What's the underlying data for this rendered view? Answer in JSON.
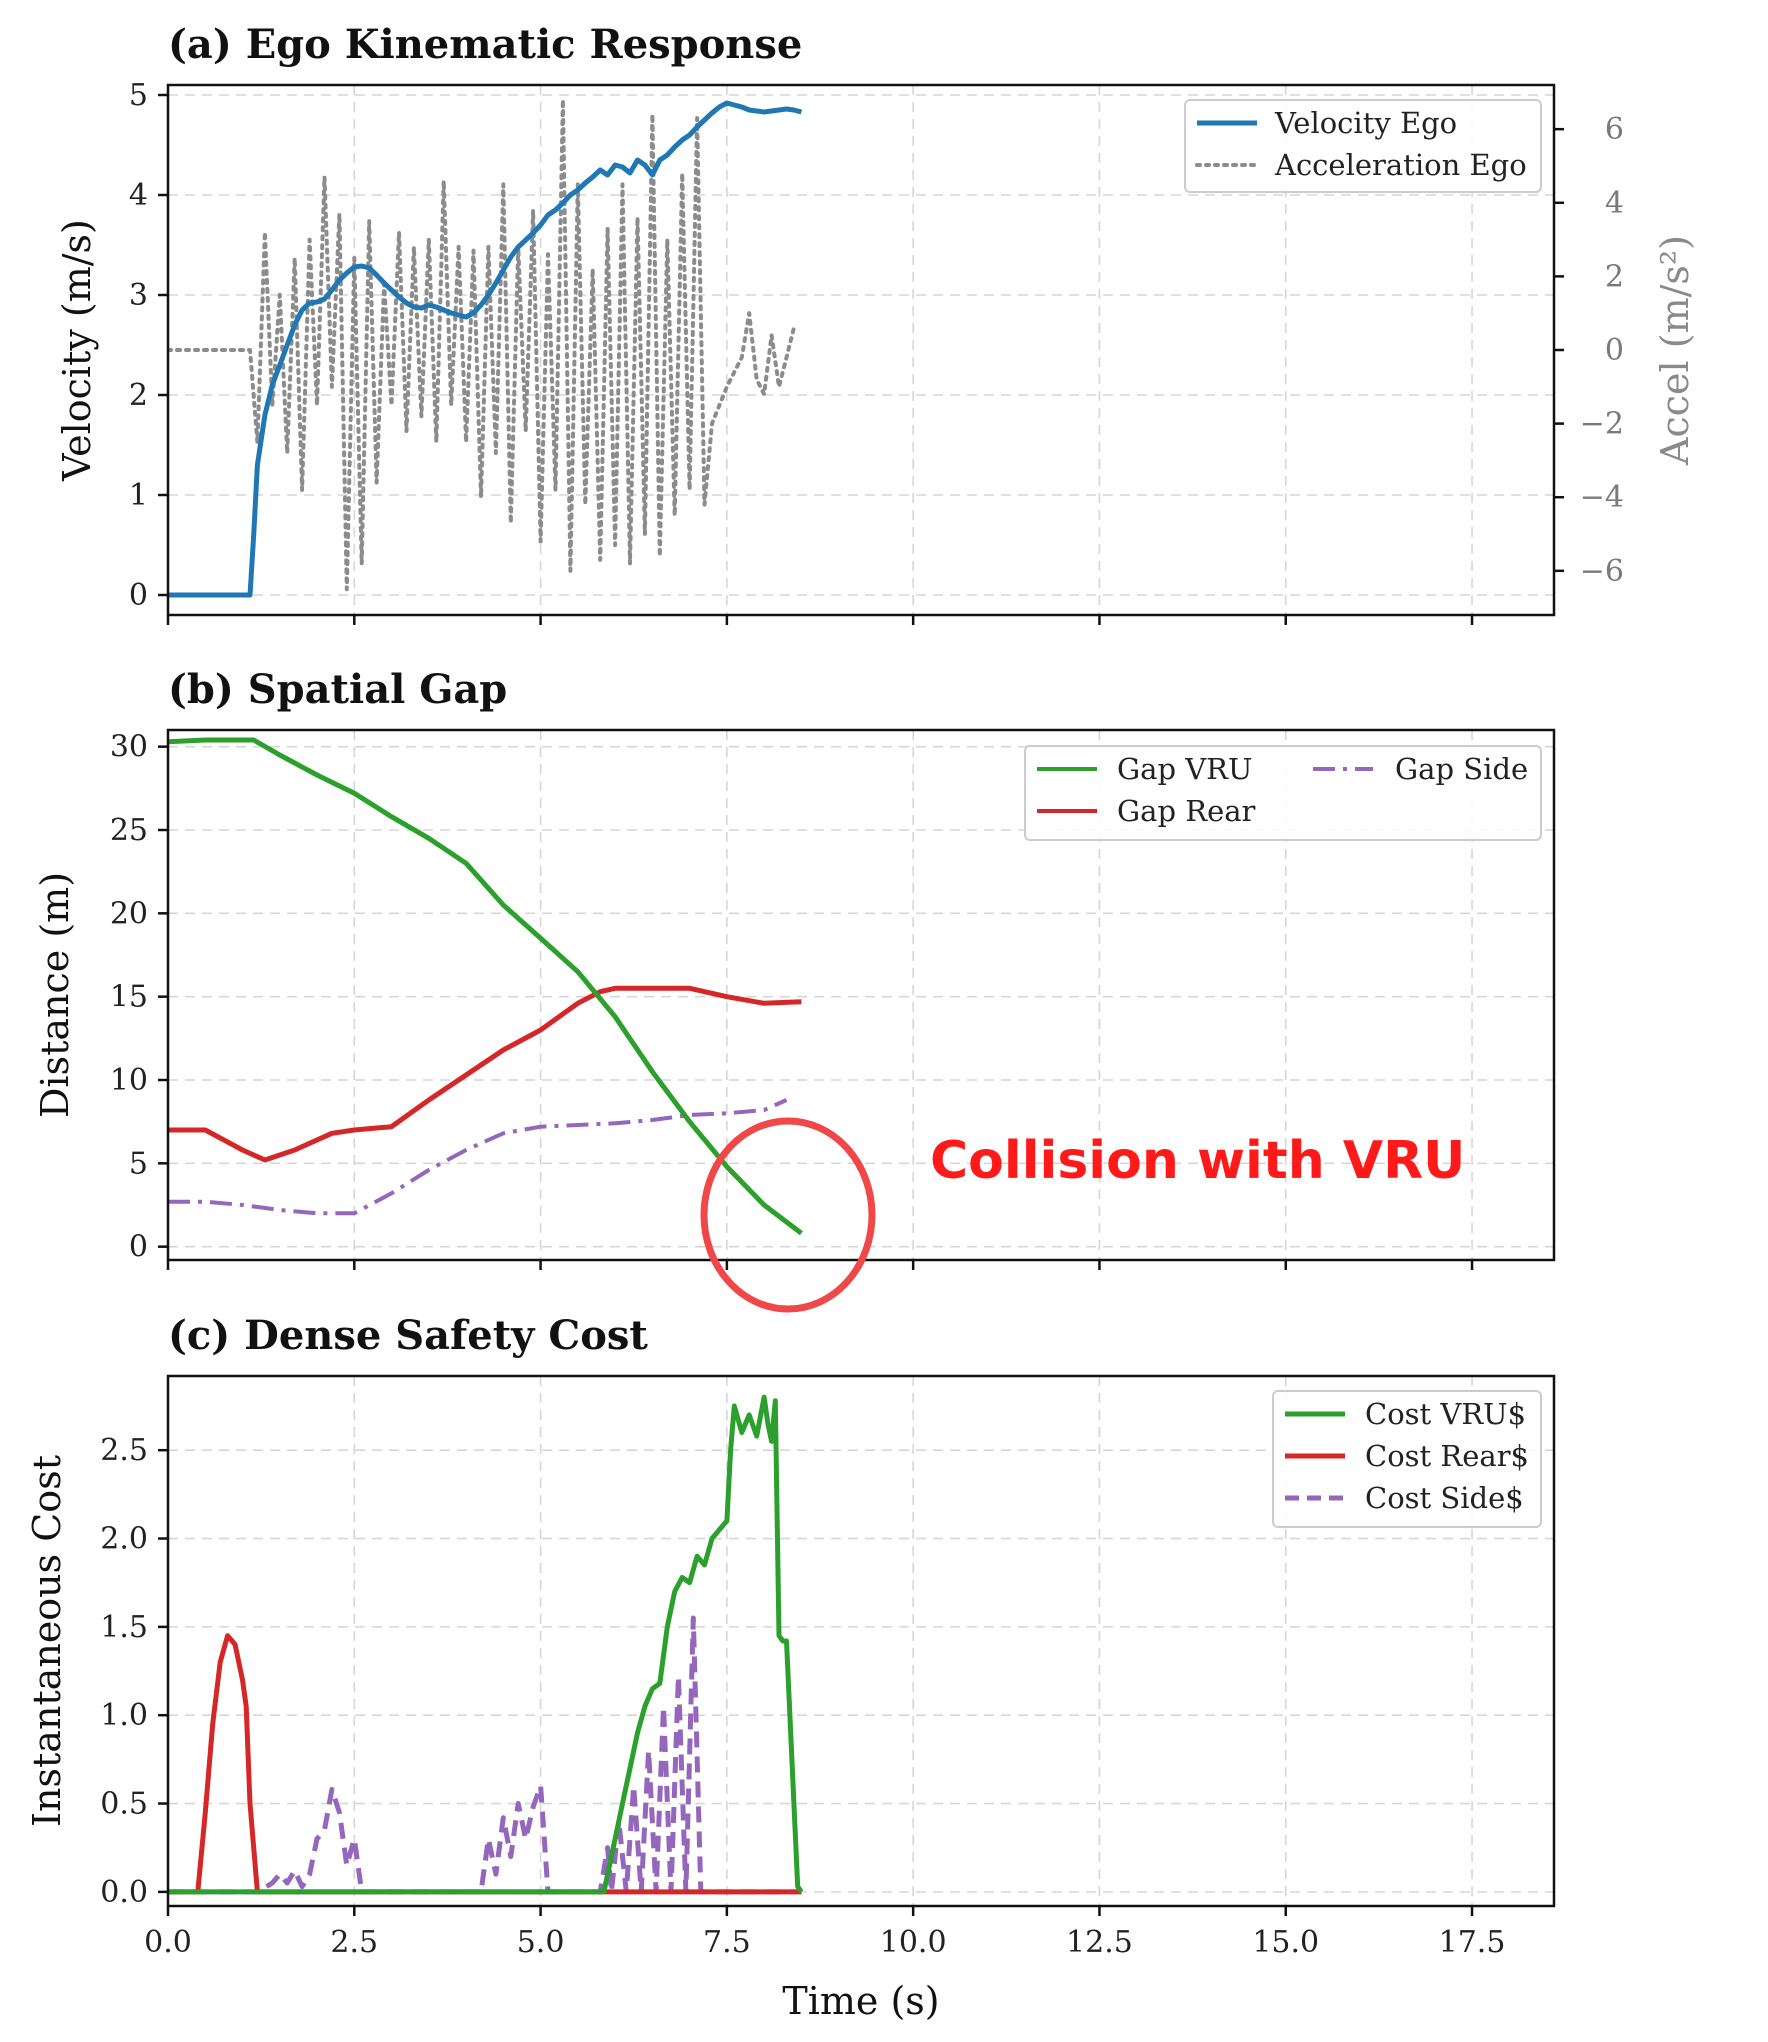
{
  "chart_data": [
    {
      "type": "line",
      "title": "(a) Ego Kinematic Response",
      "xlabel": "",
      "ylabel": "Velocity (m/s)",
      "ylabel_right": "Accel (m/s²)",
      "xlim": [
        0,
        18.6
      ],
      "ylim": [
        -0.2,
        5.1
      ],
      "ylim_right": [
        -7.2,
        7.2
      ],
      "yticks": [
        0,
        1,
        2,
        3,
        4,
        5
      ],
      "yticks_right": [
        -6,
        -4,
        -2,
        0,
        2,
        4,
        6
      ],
      "grid": true,
      "legend": "top-right",
      "series": [
        {
          "name": "Velocity Ego",
          "axis": "left",
          "color": "#1f77b4",
          "style": "solid",
          "x": [
            0,
            1.1,
            1.15,
            1.2,
            1.3,
            1.4,
            1.5,
            1.6,
            1.7,
            1.8,
            1.9,
            2.0,
            2.1,
            2.2,
            2.3,
            2.4,
            2.5,
            2.6,
            2.7,
            2.8,
            2.9,
            3.0,
            3.1,
            3.2,
            3.3,
            3.4,
            3.5,
            3.6,
            3.7,
            3.8,
            3.9,
            4.0,
            4.1,
            4.2,
            4.3,
            4.4,
            4.5,
            4.6,
            4.7,
            4.8,
            4.9,
            5.0,
            5.1,
            5.2,
            5.3,
            5.4,
            5.5,
            5.6,
            5.7,
            5.8,
            5.9,
            6.0,
            6.1,
            6.2,
            6.3,
            6.4,
            6.5,
            6.6,
            6.7,
            6.8,
            6.9,
            7.0,
            7.1,
            7.2,
            7.3,
            7.4,
            7.5,
            7.6,
            7.7,
            7.8,
            7.9,
            8.0,
            8.1,
            8.2,
            8.3,
            8.4,
            8.5
          ],
          "y": [
            0,
            0,
            0.6,
            1.3,
            1.8,
            2.1,
            2.3,
            2.5,
            2.7,
            2.85,
            2.92,
            2.93,
            2.96,
            3.05,
            3.15,
            3.22,
            3.28,
            3.29,
            3.27,
            3.2,
            3.12,
            3.05,
            2.98,
            2.92,
            2.88,
            2.87,
            2.9,
            2.88,
            2.85,
            2.82,
            2.8,
            2.78,
            2.82,
            2.9,
            3.0,
            3.12,
            3.25,
            3.38,
            3.48,
            3.55,
            3.62,
            3.7,
            3.8,
            3.85,
            3.92,
            4.0,
            4.05,
            4.12,
            4.18,
            4.25,
            4.2,
            4.3,
            4.28,
            4.22,
            4.35,
            4.3,
            4.2,
            4.35,
            4.4,
            4.48,
            4.55,
            4.6,
            4.68,
            4.75,
            4.82,
            4.88,
            4.92,
            4.9,
            4.88,
            4.85,
            4.84,
            4.83,
            4.84,
            4.85,
            4.86,
            4.85,
            4.83
          ]
        },
        {
          "name": "Acceleration Ego",
          "axis": "right",
          "color": "#8c8c8c",
          "style": "dotted",
          "x": [
            0,
            1.1,
            1.2,
            1.3,
            1.4,
            1.5,
            1.6,
            1.7,
            1.8,
            1.9,
            2.0,
            2.1,
            2.2,
            2.3,
            2.4,
            2.5,
            2.6,
            2.7,
            2.8,
            2.9,
            3.0,
            3.1,
            3.2,
            3.3,
            3.4,
            3.5,
            3.6,
            3.7,
            3.8,
            3.9,
            4.0,
            4.1,
            4.2,
            4.3,
            4.4,
            4.5,
            4.6,
            4.7,
            4.8,
            4.9,
            5.0,
            5.1,
            5.2,
            5.3,
            5.4,
            5.5,
            5.6,
            5.7,
            5.8,
            5.9,
            6.0,
            6.1,
            6.2,
            6.3,
            6.4,
            6.5,
            6.6,
            6.7,
            6.8,
            6.9,
            7.0,
            7.1,
            7.2,
            7.3,
            7.4,
            7.5,
            7.6,
            7.7,
            7.8,
            7.9,
            8.0,
            8.1,
            8.2,
            8.3,
            8.4
          ],
          "y": [
            0,
            0,
            -2.5,
            3.2,
            -1.5,
            1.5,
            -2.8,
            2.5,
            -3.8,
            3.0,
            -1.5,
            4.7,
            -1.0,
            3.7,
            -6.5,
            2.5,
            -5.8,
            3.5,
            -3.6,
            1.8,
            -1.5,
            3.2,
            -2.2,
            2.8,
            -1.8,
            3.0,
            -2.5,
            4.6,
            -1.5,
            2.8,
            -2.5,
            2.7,
            -4.0,
            2.8,
            -2.8,
            4.5,
            -4.7,
            2.8,
            -2.2,
            3.8,
            -5.2,
            2.6,
            -3.8,
            6.8,
            -6.0,
            4.5,
            -4.2,
            2.2,
            -5.7,
            3.3,
            -5.3,
            4.5,
            -5.8,
            3.6,
            -5.0,
            6.4,
            -5.6,
            3.0,
            -4.5,
            4.8,
            -3.8,
            6.3,
            -4.2,
            -2.0,
            -1.5,
            -1.0,
            -0.6,
            -0.2,
            1.0,
            -0.8,
            -1.2,
            0.4,
            -1.0,
            -0.2,
            0.6
          ]
        }
      ]
    },
    {
      "type": "line",
      "title": "(b) Spatial Gap",
      "xlabel": "",
      "ylabel": "Distance (m)",
      "xlim": [
        0,
        18.6
      ],
      "ylim": [
        -0.8,
        31.0
      ],
      "yticks": [
        0,
        5,
        10,
        15,
        20,
        25,
        30
      ],
      "grid": true,
      "legend": "top-right",
      "annotation": "Collision with VRU",
      "series": [
        {
          "name": "Gap VRU",
          "color": "#2ca02c",
          "style": "solid",
          "x": [
            0,
            0.5,
            1.15,
            1.5,
            2.0,
            2.5,
            3.0,
            3.5,
            4.0,
            4.2,
            4.5,
            5.0,
            5.5,
            6.0,
            6.5,
            7.0,
            7.5,
            8.0,
            8.5
          ],
          "y": [
            30.3,
            30.4,
            30.4,
            29.5,
            28.3,
            27.2,
            25.8,
            24.5,
            23.0,
            22.0,
            20.5,
            18.5,
            16.5,
            13.8,
            10.5,
            7.5,
            4.8,
            2.5,
            0.8
          ]
        },
        {
          "name": "Gap Rear",
          "color": "#d62728",
          "style": "solid",
          "x": [
            0,
            0.5,
            1.0,
            1.3,
            1.7,
            2.2,
            2.5,
            3.0,
            3.5,
            4.0,
            4.5,
            5.0,
            5.5,
            5.8,
            6.0,
            6.5,
            7.0,
            7.5,
            8.0,
            8.5
          ],
          "y": [
            7.0,
            7.0,
            5.8,
            5.2,
            5.8,
            6.8,
            7.0,
            7.2,
            8.8,
            10.3,
            11.8,
            13.0,
            14.6,
            15.3,
            15.5,
            15.5,
            15.5,
            15.0,
            14.6,
            14.7
          ]
        },
        {
          "name": "Gap Side",
          "color": "#9467bd",
          "style": "dashdot",
          "x": [
            0,
            0.5,
            1.0,
            1.5,
            2.0,
            2.5,
            3.0,
            3.5,
            4.0,
            4.5,
            5.0,
            5.5,
            6.0,
            6.5,
            7.0,
            7.5,
            8.0,
            8.3
          ],
          "y": [
            2.7,
            2.7,
            2.5,
            2.2,
            2.0,
            2.0,
            3.2,
            4.6,
            5.8,
            6.8,
            7.2,
            7.3,
            7.4,
            7.6,
            7.9,
            8.0,
            8.2,
            8.8
          ]
        }
      ]
    },
    {
      "type": "line",
      "title": "(c) Dense Safety Cost",
      "xlabel": "Time (s)",
      "ylabel": "Instantaneous Cost",
      "xlim": [
        0,
        18.6
      ],
      "ylim": [
        -0.08,
        2.92
      ],
      "xticks": [
        "0.0",
        "2.5",
        "5.0",
        "7.5",
        "10.0",
        "12.5",
        "15.0",
        "17.5"
      ],
      "yticks": [
        "0.0",
        "0.5",
        "1.0",
        "1.5",
        "2.0",
        "2.5"
      ],
      "grid": true,
      "legend": "top-right",
      "series": [
        {
          "name": "Cost VRU$",
          "color": "#2ca02c",
          "style": "solid",
          "x": [
            0,
            5.85,
            6.0,
            6.1,
            6.2,
            6.3,
            6.4,
            6.5,
            6.6,
            6.7,
            6.8,
            6.9,
            7.0,
            7.1,
            7.2,
            7.3,
            7.4,
            7.5,
            7.55,
            7.6,
            7.7,
            7.8,
            7.9,
            8.0,
            8.05,
            8.1,
            8.15,
            8.2,
            8.25,
            8.3,
            8.45,
            8.5
          ],
          "y": [
            0,
            0,
            0.3,
            0.5,
            0.7,
            0.9,
            1.05,
            1.15,
            1.18,
            1.5,
            1.7,
            1.78,
            1.75,
            1.9,
            1.85,
            2.0,
            2.05,
            2.1,
            2.5,
            2.75,
            2.6,
            2.7,
            2.58,
            2.8,
            2.65,
            2.55,
            2.78,
            1.45,
            1.42,
            1.42,
            0.03,
            0
          ]
        },
        {
          "name": "Cost Rear$",
          "color": "#d62728",
          "style": "solid",
          "x": [
            0,
            0.4,
            0.5,
            0.6,
            0.7,
            0.8,
            0.9,
            1.0,
            1.05,
            1.1,
            1.2,
            8.5
          ],
          "y": [
            0,
            0,
            0.45,
            0.95,
            1.3,
            1.45,
            1.4,
            1.2,
            1.05,
            0.5,
            0,
            0
          ]
        },
        {
          "name": "Cost Side$",
          "color": "#9467bd",
          "style": "dashed",
          "x": [
            0,
            1.2,
            1.4,
            1.5,
            1.6,
            1.7,
            1.8,
            1.9,
            2.0,
            2.1,
            2.2,
            2.3,
            2.4,
            2.5,
            2.6,
            2.7,
            4.2,
            4.3,
            4.4,
            4.5,
            4.6,
            4.7,
            4.8,
            4.9,
            5.0,
            5.05,
            5.1,
            5.8,
            5.9,
            5.95,
            6.05,
            6.15,
            6.25,
            6.35,
            6.45,
            6.55,
            6.65,
            6.75,
            6.85,
            6.95,
            7.05,
            7.15,
            8.5
          ],
          "y": [
            0,
            0,
            0.05,
            0.1,
            0.05,
            0.12,
            0.03,
            0.1,
            0.3,
            0.35,
            0.58,
            0.45,
            0.15,
            0.3,
            0,
            0,
            0,
            0.3,
            0.1,
            0.42,
            0.2,
            0.5,
            0.3,
            0.48,
            0.6,
            0.3,
            0,
            0,
            0.25,
            0,
            0.4,
            0,
            0.6,
            0,
            0.8,
            0,
            1.05,
            0,
            1.22,
            0,
            1.55,
            0,
            0
          ]
        }
      ]
    }
  ]
}
